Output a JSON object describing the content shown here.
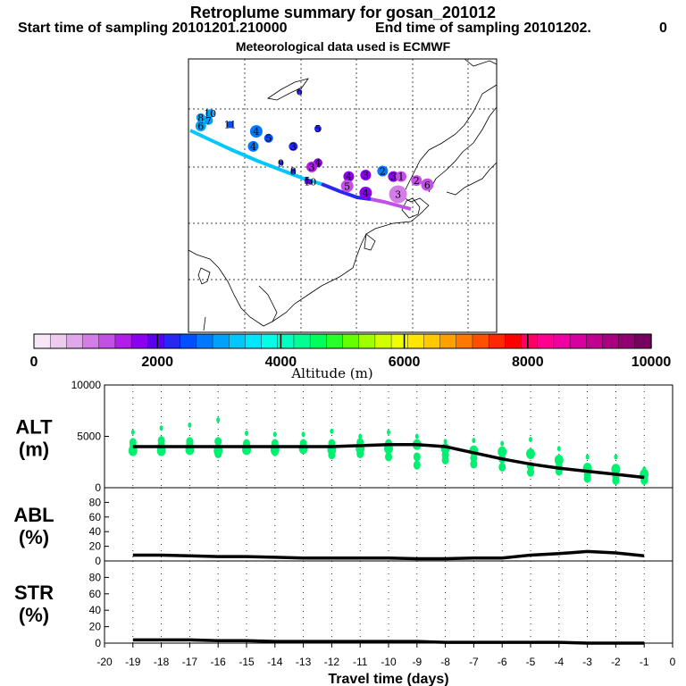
{
  "title": "Retroplume summary for gosan_201012",
  "start_label": "Start time of sampling 20101201.210000",
  "end_label": "End time of sampling 20101202.",
  "end_extra": "0",
  "met_label": "Meteorological data used is ECMWF",
  "colorbar": {
    "ticks": [
      "0",
      "2000",
      "4000",
      "6000",
      "8000",
      "10000"
    ],
    "label": "Altitude (m)",
    "colors": [
      "#f6e6f6",
      "#eccbef",
      "#e0a8ea",
      "#d37ee8",
      "#c350e6",
      "#b01ee8",
      "#8c00f0",
      "#5a00f0",
      "#2828f5",
      "#0050ff",
      "#0078ff",
      "#00a0ff",
      "#00c8ff",
      "#00e6ff",
      "#00ffe6",
      "#00ffc0",
      "#00ff90",
      "#00ff5a",
      "#28ff28",
      "#64ff00",
      "#a0ff00",
      "#d2ff00",
      "#f0ff00",
      "#ffe600",
      "#ffc800",
      "#ffa000",
      "#ff7800",
      "#ff5000",
      "#ff2800",
      "#ff0000",
      "#ff0064",
      "#ff0090",
      "#f000a0",
      "#d800a0",
      "#c00090",
      "#a80080",
      "#900070",
      "#780060"
    ]
  },
  "map": {
    "trajectory_labels": [
      {
        "t": "6",
        "c": "#2828f5",
        "r": 3,
        "lx": 0.36,
        "ly": 0.12
      },
      {
        "t": "10",
        "c": "#00a0ff",
        "r": 5,
        "lx": 0.07,
        "ly": 0.2
      },
      {
        "t": "8",
        "c": "#00a0ff",
        "r": 5,
        "lx": 0.04,
        "ly": 0.215
      },
      {
        "t": "7",
        "c": "#00a0ff",
        "r": 5,
        "lx": 0.065,
        "ly": 0.225
      },
      {
        "t": "6",
        "c": "#00a0ff",
        "r": 6,
        "lx": 0.04,
        "ly": 0.245
      },
      {
        "t": "11",
        "c": "#0050ff",
        "r": 4,
        "lx": 0.135,
        "ly": 0.24
      },
      {
        "t": "4",
        "c": "#0078ff",
        "r": 7,
        "lx": 0.22,
        "ly": 0.265
      },
      {
        "t": "5",
        "c": "#0050ff",
        "r": 5,
        "lx": 0.26,
        "ly": 0.29
      },
      {
        "t": "4",
        "c": "#0078ff",
        "r": 6,
        "lx": 0.21,
        "ly": 0.32
      },
      {
        "t": "5",
        "c": "#2828f5",
        "r": 4,
        "lx": 0.42,
        "ly": 0.255
      },
      {
        "t": "3",
        "c": "#2828f5",
        "r": 5,
        "lx": 0.34,
        "ly": 0.32
      },
      {
        "t": "9",
        "c": "#2828f5",
        "r": 3,
        "lx": 0.3,
        "ly": 0.38
      },
      {
        "t": "8",
        "c": "#2828f5",
        "r": 3,
        "lx": 0.34,
        "ly": 0.41
      },
      {
        "t": "4",
        "c": "#8c00f0",
        "r": 5,
        "lx": 0.42,
        "ly": 0.38
      },
      {
        "t": "3",
        "c": "#b01ee8",
        "r": 6,
        "lx": 0.4,
        "ly": 0.395
      },
      {
        "t": "5",
        "c": "#5a00f0",
        "r": 3,
        "lx": 0.385,
        "ly": 0.445
      },
      {
        "t": "10",
        "c": "#5a00f0",
        "r": 3,
        "lx": 0.395,
        "ly": 0.45
      },
      {
        "t": "4",
        "c": "#8c00f0",
        "r": 6,
        "lx": 0.52,
        "ly": 0.43
      },
      {
        "t": "5",
        "c": "#c350e6",
        "r": 7,
        "lx": 0.515,
        "ly": 0.465
      },
      {
        "t": "3",
        "c": "#8c00f0",
        "r": 6,
        "lx": 0.575,
        "ly": 0.425
      },
      {
        "t": "2",
        "c": "#0078ff",
        "r": 6,
        "lx": 0.63,
        "ly": 0.41
      },
      {
        "t": "3",
        "c": "#8c00f0",
        "r": 6,
        "lx": 0.665,
        "ly": 0.43
      },
      {
        "t": "1",
        "c": "#c350e6",
        "r": 6,
        "lx": 0.69,
        "ly": 0.43
      },
      {
        "t": "2",
        "c": "#c350e6",
        "r": 6,
        "lx": 0.74,
        "ly": 0.445
      },
      {
        "t": "6",
        "c": "#c350e6",
        "r": 7,
        "lx": 0.775,
        "ly": 0.46
      },
      {
        "t": "4",
        "c": "#8c00f0",
        "r": 7,
        "lx": 0.575,
        "ly": 0.49
      },
      {
        "t": "3",
        "c": "#d37ee8",
        "r": 10,
        "lx": 0.68,
        "ly": 0.495
      }
    ]
  },
  "panels": [
    {
      "name": "ALT",
      "unit": "(m)",
      "ylim": [
        0,
        10000
      ],
      "yticks": [
        "0",
        "5000",
        "10000"
      ]
    },
    {
      "name": "ABL",
      "unit": "(%)",
      "ylim": [
        0,
        100
      ],
      "yticks": [
        "0",
        "20",
        "40",
        "60",
        "80"
      ]
    },
    {
      "name": "STR",
      "unit": "(%)",
      "ylim": [
        0,
        100
      ],
      "yticks": [
        "0",
        "20",
        "40",
        "60",
        "80"
      ]
    }
  ],
  "x_axis": {
    "label": "Travel time (days)",
    "xlim": [
      -20,
      0
    ],
    "ticks": [
      "-20",
      "-19",
      "-18",
      "-17",
      "-16",
      "-15",
      "-14",
      "-13",
      "-12",
      "-11",
      "-10",
      "-9",
      "-8",
      "-7",
      "-6",
      "-5",
      "-4",
      "-3",
      "-2",
      "-1",
      "0"
    ]
  },
  "chart_data": {
    "type": "line",
    "title": "Retroplume summary for gosan_201012",
    "xlabel": "Travel time (days)",
    "x": [
      -19,
      -18,
      -17,
      -16,
      -15,
      -14,
      -13,
      -12,
      -11,
      -10,
      -9,
      -8,
      -7,
      -6,
      -5,
      -4,
      -3,
      -2,
      -1
    ],
    "series": [
      {
        "name": "ALT (m)",
        "values": [
          4000,
          4000,
          4000,
          4000,
          4000,
          4000,
          4000,
          4000,
          4100,
          4200,
          4200,
          4000,
          3400,
          2800,
          2300,
          1900,
          1600,
          1300,
          1000
        ],
        "spread": [
          [
            5400,
            3600,
            4400,
            3900
          ],
          [
            5800,
            3600,
            4600,
            4200
          ],
          [
            6100,
            3700,
            4500,
            4300
          ],
          [
            6600,
            3600,
            4500,
            3300
          ],
          [
            5300,
            3700,
            4300
          ],
          [
            5200,
            3700,
            4300,
            3500
          ],
          [
            5200,
            3800,
            4300
          ],
          [
            5500,
            3700,
            4300,
            3200
          ],
          [
            5000,
            3800,
            4400,
            3300
          ],
          [
            5400,
            3800,
            4300,
            3000
          ],
          [
            5000,
            4200,
            3000,
            2200
          ],
          [
            4500,
            3800,
            3200,
            2700
          ],
          [
            4600,
            3600,
            2900,
            2300
          ],
          [
            4300,
            3500,
            2800,
            2000
          ],
          [
            4700,
            3300,
            2100,
            1500
          ],
          [
            3800,
            2700,
            2000,
            1600
          ],
          [
            3000,
            1900,
            1300,
            900
          ],
          [
            3000,
            1800,
            1100,
            700
          ],
          [
            1800,
            1300,
            900,
            700
          ]
        ]
      },
      {
        "name": "ABL (%)",
        "values": [
          8,
          8,
          7,
          6,
          6,
          5,
          4,
          4,
          4,
          4,
          3,
          3,
          4,
          4,
          8,
          10,
          13,
          11,
          7
        ]
      },
      {
        "name": "STR (%)",
        "values": [
          4,
          4,
          4,
          3,
          3,
          2,
          2,
          2,
          2,
          2,
          2,
          1,
          1,
          1,
          1,
          1,
          0,
          0,
          0
        ]
      }
    ]
  }
}
